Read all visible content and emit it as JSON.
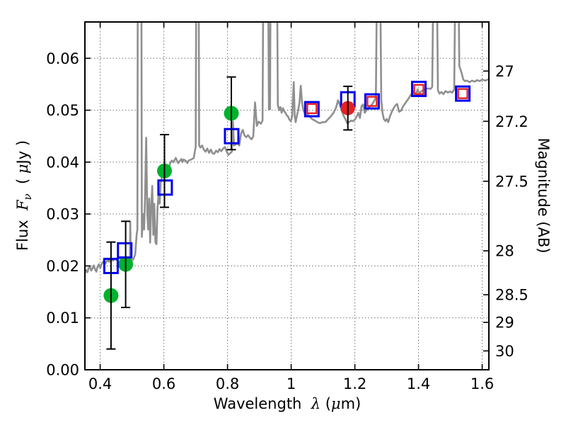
{
  "figure": {
    "xlabel_parts": [
      "Wavelength  ",
      "λ",
      " (",
      "μ",
      "m)"
    ],
    "ylabel_left_parts": [
      "Flux  ",
      "F",
      "ν",
      "  ( ",
      "μ",
      "Jy )"
    ],
    "ylabel_right": "Magnitude (AB)"
  },
  "chart_data": {
    "type": "line+scatter",
    "title": "",
    "xlabel": "Wavelength λ (μm)",
    "ylabel_left": "Flux Fν ( μJy )",
    "ylabel_right": "Magnitude (AB)",
    "xlim": [
      0.352,
      1.621
    ],
    "ylim": [
      0,
      0.067
    ],
    "grid": "dotted at major ticks, both axes",
    "x_ticks": {
      "values": [
        0.4,
        0.6,
        0.8,
        1.0,
        1.2,
        1.4,
        1.6
      ],
      "labels": [
        "0.4",
        "0.6",
        "0.8",
        "1",
        "1.2",
        "1.4",
        "1.6"
      ]
    },
    "y_ticks_left": {
      "values": [
        0,
        0.01,
        0.02,
        0.03,
        0.04,
        0.05,
        0.06
      ],
      "labels": [
        "0.00",
        "0.01",
        "0.02",
        "0.03",
        "0.04",
        "0.05",
        "0.06"
      ]
    },
    "y_ticks_right": {
      "labels": [
        "27",
        "27.2",
        "27.5",
        "28",
        "28.5",
        "29",
        "30"
      ],
      "flux_values": [
        0.05754,
        0.04786,
        0.03631,
        0.02291,
        0.01445,
        0.00912,
        0.00363
      ]
    },
    "colors": {
      "spectrum": "#8f8f8f",
      "green_marker": "#00b22d",
      "blue_marker": "#0000ee",
      "red_marker": "#e62020",
      "error_bar": "#000000"
    },
    "series": [
      {
        "name": "model-spectrum",
        "type": "line",
        "color": "#8f8f8f",
        "points": [
          [
            0.352,
            0.0186
          ],
          [
            0.356,
            0.0192
          ],
          [
            0.36,
            0.0188
          ],
          [
            0.364,
            0.0196
          ],
          [
            0.368,
            0.0198
          ],
          [
            0.372,
            0.0191
          ],
          [
            0.376,
            0.0196
          ],
          [
            0.38,
            0.0201
          ],
          [
            0.384,
            0.0193
          ],
          [
            0.388,
            0.0189
          ],
          [
            0.392,
            0.0199
          ],
          [
            0.396,
            0.0203
          ],
          [
            0.4,
            0.0196
          ],
          [
            0.404,
            0.0203
          ],
          [
            0.408,
            0.0207
          ],
          [
            0.412,
            0.021
          ],
          [
            0.416,
            0.0204
          ],
          [
            0.42,
            0.0209
          ],
          [
            0.424,
            0.0211
          ],
          [
            0.428,
            0.0208
          ],
          [
            0.432,
            0.0212
          ],
          [
            0.436,
            0.0214
          ],
          [
            0.44,
            0.021
          ],
          [
            0.444,
            0.0212
          ],
          [
            0.448,
            0.0214
          ],
          [
            0.452,
            0.0211
          ],
          [
            0.456,
            0.0214
          ],
          [
            0.46,
            0.0216
          ],
          [
            0.464,
            0.0212
          ],
          [
            0.468,
            0.021
          ],
          [
            0.472,
            0.0208
          ],
          [
            0.476,
            0.0212
          ],
          [
            0.48,
            0.021
          ],
          [
            0.484,
            0.0213
          ],
          [
            0.488,
            0.0211
          ],
          [
            0.492,
            0.0213
          ],
          [
            0.4935,
            0.0212
          ],
          [
            0.4945,
            0.0285
          ],
          [
            0.496,
            0.0213
          ],
          [
            0.5,
            0.021
          ],
          [
            0.505,
            0.0214
          ],
          [
            0.51,
            0.0222
          ],
          [
            0.5145,
            0.026
          ],
          [
            0.517,
            0.027
          ],
          [
            0.518,
            0.072
          ],
          [
            0.5295,
            0.072
          ],
          [
            0.531,
            0.0256
          ],
          [
            0.535,
            0.03
          ],
          [
            0.538,
            0.027
          ],
          [
            0.541,
            0.033
          ],
          [
            0.5445,
            0.0447
          ],
          [
            0.548,
            0.03
          ],
          [
            0.551,
            0.027
          ],
          [
            0.554,
            0.033
          ],
          [
            0.557,
            0.0245
          ],
          [
            0.56,
            0.031
          ],
          [
            0.5635,
            0.0354
          ],
          [
            0.567,
            0.026
          ],
          [
            0.57,
            0.032
          ],
          [
            0.5735,
            0.0245
          ],
          [
            0.577,
            0.0242
          ],
          [
            0.58,
            0.031
          ],
          [
            0.5835,
            0.034
          ],
          [
            0.587,
            0.032
          ],
          [
            0.59,
            0.036
          ],
          [
            0.5935,
            0.037
          ],
          [
            0.597,
            0.0378
          ],
          [
            0.6,
            0.0383
          ],
          [
            0.605,
            0.038
          ],
          [
            0.61,
            0.039
          ],
          [
            0.615,
            0.0385
          ],
          [
            0.62,
            0.0398
          ],
          [
            0.625,
            0.0403
          ],
          [
            0.63,
            0.04
          ],
          [
            0.6375,
            0.0408
          ],
          [
            0.645,
            0.0398
          ],
          [
            0.65,
            0.0402
          ],
          [
            0.655,
            0.0406
          ],
          [
            0.6585,
            0.04
          ],
          [
            0.662,
            0.0405
          ],
          [
            0.67,
            0.0402
          ],
          [
            0.674,
            0.0398
          ],
          [
            0.678,
            0.0403
          ],
          [
            0.686,
            0.0405
          ],
          [
            0.694,
            0.0408
          ],
          [
            0.7,
            0.043
          ],
          [
            0.7015,
            0.072
          ],
          [
            0.7095,
            0.072
          ],
          [
            0.711,
            0.0432
          ],
          [
            0.715,
            0.0428
          ],
          [
            0.72,
            0.0432
          ],
          [
            0.7255,
            0.0424
          ],
          [
            0.731,
            0.042
          ],
          [
            0.7365,
            0.0426
          ],
          [
            0.742,
            0.0418
          ],
          [
            0.7475,
            0.0424
          ],
          [
            0.753,
            0.0417
          ],
          [
            0.7585,
            0.0416
          ],
          [
            0.764,
            0.0422
          ],
          [
            0.7695,
            0.0419
          ],
          [
            0.775,
            0.0425
          ],
          [
            0.7805,
            0.0421
          ],
          [
            0.786,
            0.0426
          ],
          [
            0.7915,
            0.0429
          ],
          [
            0.797,
            0.0421
          ],
          [
            0.8025,
            0.0414
          ],
          [
            0.808,
            0.0417
          ],
          [
            0.8135,
            0.042
          ],
          [
            0.817,
            0.0478
          ],
          [
            0.8205,
            0.0432
          ],
          [
            0.826,
            0.0434
          ],
          [
            0.8315,
            0.0436
          ],
          [
            0.837,
            0.0432
          ],
          [
            0.8425,
            0.0455
          ],
          [
            0.848,
            0.0462
          ],
          [
            0.8535,
            0.0451
          ],
          [
            0.859,
            0.0448
          ],
          [
            0.8645,
            0.0452
          ],
          [
            0.87,
            0.0447
          ],
          [
            0.8755,
            0.0444
          ],
          [
            0.881,
            0.045
          ],
          [
            0.8865,
            0.0515
          ],
          [
            0.892,
            0.047
          ],
          [
            0.8975,
            0.0478
          ],
          [
            0.905,
            0.0474
          ],
          [
            0.91,
            0.048
          ],
          [
            0.912,
            0.071
          ],
          [
            0.928,
            0.071
          ],
          [
            0.93,
            0.0502
          ],
          [
            0.9335,
            0.0502
          ],
          [
            0.935,
            0.071
          ],
          [
            0.956,
            0.071
          ],
          [
            0.958,
            0.051
          ],
          [
            0.962,
            0.05
          ],
          [
            0.966,
            0.0506
          ],
          [
            0.97,
            0.0495
          ],
          [
            0.974,
            0.0504
          ],
          [
            0.978,
            0.0498
          ],
          [
            0.982,
            0.0495
          ],
          [
            0.986,
            0.049
          ],
          [
            0.99,
            0.0488
          ],
          [
            0.994,
            0.0482
          ],
          [
            0.999,
            0.0479
          ],
          [
            1.003,
            0.0488
          ],
          [
            1.008,
            0.0554
          ],
          [
            1.011,
            0.049
          ],
          [
            1.014,
            0.0477
          ],
          [
            1.018,
            0.049
          ],
          [
            1.022,
            0.05
          ],
          [
            1.026,
            0.0515
          ],
          [
            1.03,
            0.0547
          ],
          [
            1.034,
            0.0515
          ],
          [
            1.038,
            0.05
          ],
          [
            1.042,
            0.0495
          ],
          [
            1.047,
            0.049
          ],
          [
            1.052,
            0.0492
          ],
          [
            1.057,
            0.0488
          ],
          [
            1.062,
            0.0485
          ],
          [
            1.068,
            0.0482
          ],
          [
            1.075,
            0.048
          ],
          [
            1.082,
            0.0477
          ],
          [
            1.09,
            0.0475
          ],
          [
            1.098,
            0.0477
          ],
          [
            1.107,
            0.0477
          ],
          [
            1.115,
            0.0482
          ],
          [
            1.124,
            0.0488
          ],
          [
            1.133,
            0.0495
          ],
          [
            1.141,
            0.0505
          ],
          [
            1.147,
            0.0519
          ],
          [
            1.152,
            0.0512
          ],
          [
            1.158,
            0.05
          ],
          [
            1.164,
            0.049
          ],
          [
            1.17,
            0.0483
          ],
          [
            1.176,
            0.0475
          ],
          [
            1.182,
            0.0477
          ],
          [
            1.188,
            0.048
          ],
          [
            1.194,
            0.0479
          ],
          [
            1.2,
            0.0482
          ],
          [
            1.206,
            0.0488
          ],
          [
            1.211,
            0.0495
          ],
          [
            1.216,
            0.0485
          ],
          [
            1.221,
            0.0508
          ],
          [
            1.226,
            0.0511
          ],
          [
            1.231,
            0.0495
          ],
          [
            1.237,
            0.05
          ],
          [
            1.243,
            0.0505
          ],
          [
            1.249,
            0.0508
          ],
          [
            1.255,
            0.0512
          ],
          [
            1.261,
            0.0518
          ],
          [
            1.266,
            0.0525
          ],
          [
            1.269,
            0.072
          ],
          [
            1.28,
            0.072
          ],
          [
            1.283,
            0.052
          ],
          [
            1.287,
            0.0495
          ],
          [
            1.291,
            0.0483
          ],
          [
            1.296,
            0.0479
          ],
          [
            1.3,
            0.0483
          ],
          [
            1.305,
            0.0477
          ],
          [
            1.31,
            0.0488
          ],
          [
            1.318,
            0.05
          ],
          [
            1.327,
            0.0509
          ],
          [
            1.333,
            0.0512
          ],
          [
            1.339,
            0.0497
          ],
          [
            1.345,
            0.0499
          ],
          [
            1.352,
            0.0508
          ],
          [
            1.36,
            0.0515
          ],
          [
            1.368,
            0.0522
          ],
          [
            1.376,
            0.053
          ],
          [
            1.384,
            0.0535
          ],
          [
            1.392,
            0.0531
          ],
          [
            1.397,
            0.054
          ],
          [
            1.402,
            0.0533
          ],
          [
            1.408,
            0.0536
          ],
          [
            1.415,
            0.0539
          ],
          [
            1.422,
            0.0541
          ],
          [
            1.43,
            0.0542
          ],
          [
            1.438,
            0.0541
          ],
          [
            1.443,
            0.0545
          ],
          [
            1.446,
            0.072
          ],
          [
            1.458,
            0.072
          ],
          [
            1.461,
            0.0538
          ],
          [
            1.466,
            0.0532
          ],
          [
            1.472,
            0.0535
          ],
          [
            1.478,
            0.0531
          ],
          [
            1.485,
            0.0537
          ],
          [
            1.492,
            0.0534
          ],
          [
            1.499,
            0.0536
          ],
          [
            1.506,
            0.0534
          ],
          [
            1.512,
            0.054
          ],
          [
            1.515,
            0.072
          ],
          [
            1.526,
            0.072
          ],
          [
            1.528,
            0.0585
          ],
          [
            1.532,
            0.0578
          ],
          [
            1.536,
            0.057
          ],
          [
            1.54,
            0.056
          ],
          [
            1.545,
            0.0556
          ],
          [
            1.552,
            0.0557
          ],
          [
            1.56,
            0.0554
          ],
          [
            1.568,
            0.0557
          ],
          [
            1.576,
            0.0555
          ],
          [
            1.584,
            0.0558
          ],
          [
            1.592,
            0.0556
          ],
          [
            1.6,
            0.0559
          ],
          [
            1.61,
            0.0557
          ],
          [
            1.621,
            0.056
          ]
        ]
      },
      {
        "name": "photometry-green-circles",
        "type": "scatter",
        "marker": "filled-circle",
        "color": "#00b22d",
        "points": [
          {
            "x": 0.434,
            "y": 0.0143,
            "yerr": 0.0103
          },
          {
            "x": 0.48,
            "y": 0.0203,
            "yerr": 0.0083
          },
          {
            "x": 0.602,
            "y": 0.0383,
            "yerr": 0.007
          },
          {
            "x": 0.812,
            "y": 0.0494,
            "yerr": 0.007
          }
        ]
      },
      {
        "name": "photometry-blue-squares",
        "type": "scatter",
        "marker": "open-square",
        "color": "#0000ee",
        "points": [
          {
            "x": 0.434,
            "y": 0.02
          },
          {
            "x": 0.477,
            "y": 0.023
          },
          {
            "x": 0.604,
            "y": 0.0351
          },
          {
            "x": 0.813,
            "y": 0.045
          },
          {
            "x": 1.065,
            "y": 0.0502
          },
          {
            "x": 1.178,
            "y": 0.0521
          },
          {
            "x": 1.254,
            "y": 0.0517
          },
          {
            "x": 1.401,
            "y": 0.0541
          },
          {
            "x": 1.539,
            "y": 0.0532
          }
        ]
      },
      {
        "name": "model-photometry-red-squares",
        "type": "scatter",
        "marker": "open-square-small",
        "color": "#e62020",
        "points": [
          {
            "x": 1.065,
            "y": 0.0503
          },
          {
            "x": 1.254,
            "y": 0.0517
          },
          {
            "x": 1.401,
            "y": 0.054
          },
          {
            "x": 1.539,
            "y": 0.0532
          }
        ]
      },
      {
        "name": "photometry-red-circle",
        "type": "scatter",
        "marker": "filled-circle",
        "color": "#e62020",
        "points": [
          {
            "x": 1.178,
            "y": 0.0504,
            "yerr": 0.0042
          }
        ]
      }
    ]
  }
}
